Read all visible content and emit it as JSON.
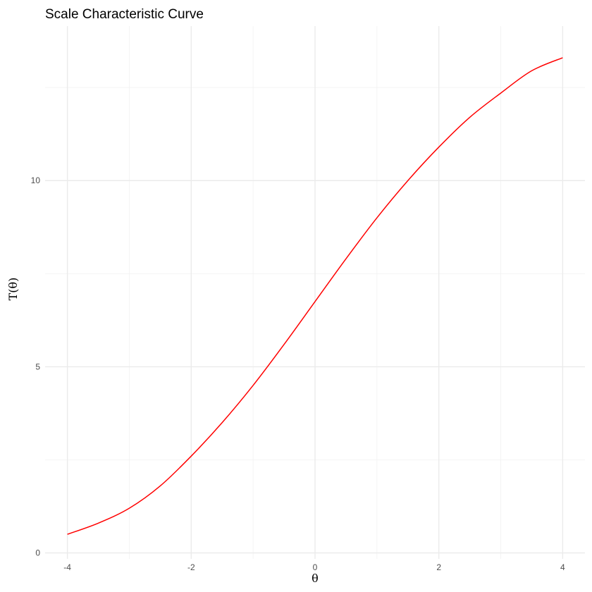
{
  "chart_data": {
    "type": "line",
    "title": "Scale Characteristic Curve",
    "xlabel": "θ",
    "ylabel": "T(θ)",
    "xlim": [
      -4.36,
      4.36
    ],
    "ylim": [
      -0.16,
      14.15
    ],
    "x_ticks": [
      -4,
      -2,
      0,
      2,
      4
    ],
    "x_tick_labels": [
      "-4",
      "-2",
      "0",
      "2",
      "4"
    ],
    "y_ticks": [
      0,
      5,
      10
    ],
    "y_tick_labels": [
      "0",
      "5",
      "10"
    ],
    "grid": true,
    "legend": "none",
    "series": [
      {
        "color": "#ff0000",
        "x": [
          -4,
          -3.5,
          -3,
          -2.5,
          -2,
          -1.5,
          -1,
          -0.5,
          0,
          0.5,
          1,
          1.5,
          2,
          2.5,
          3,
          3.5,
          4
        ],
        "values": [
          0.5,
          0.8,
          1.2,
          1.8,
          2.6,
          3.5,
          4.5,
          5.6,
          6.75,
          7.9,
          9.0,
          10.0,
          10.9,
          11.7,
          12.35,
          12.95,
          13.3
        ]
      }
    ]
  }
}
